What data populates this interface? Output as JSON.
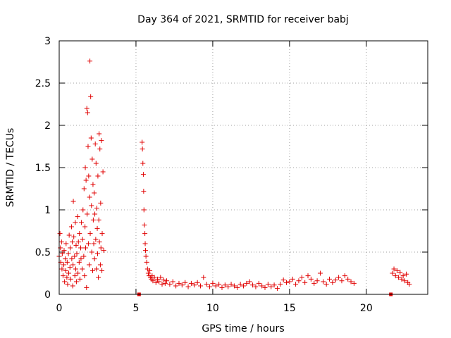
{
  "chart_data": {
    "type": "scatter",
    "title": "Day 364 of 2021, SRMTID for receiver babj",
    "xlabel": "GPS time / hours",
    "ylabel": "SRMTID / TECUs",
    "xlim": [
      0,
      24
    ],
    "ylim": [
      0,
      3
    ],
    "xticks": [
      0,
      5,
      10,
      15,
      20
    ],
    "yticks": [
      0,
      0.5,
      1,
      1.5,
      2,
      2.5,
      3
    ],
    "xtick_labels": [
      "0",
      "5",
      "10",
      "15",
      "20"
    ],
    "ytick_labels": [
      "0",
      "0.5",
      "1",
      "1.5",
      "2",
      "2.5",
      "3"
    ],
    "grid": true,
    "series": [
      {
        "name": "SRMTID",
        "color": "#e00000",
        "marker": "plus",
        "points": [
          [
            0.0,
            0.45
          ],
          [
            0.05,
            0.72
          ],
          [
            0.08,
            0.55
          ],
          [
            0.1,
            0.38
          ],
          [
            0.15,
            0.62
          ],
          [
            0.18,
            0.3
          ],
          [
            0.2,
            0.48
          ],
          [
            0.25,
            0.22
          ],
          [
            0.3,
            0.35
          ],
          [
            0.32,
            0.52
          ],
          [
            0.35,
            0.15
          ],
          [
            0.4,
            0.42
          ],
          [
            0.42,
            0.28
          ],
          [
            0.45,
            0.6
          ],
          [
            0.5,
            0.2
          ],
          [
            0.52,
            0.38
          ],
          [
            0.55,
            0.12
          ],
          [
            0.6,
            0.48
          ],
          [
            0.62,
            0.25
          ],
          [
            0.65,
            0.7
          ],
          [
            0.7,
            0.32
          ],
          [
            0.72,
            0.55
          ],
          [
            0.75,
            0.18
          ],
          [
            0.8,
            0.8
          ],
          [
            0.82,
            0.42
          ],
          [
            0.85,
            0.62
          ],
          [
            0.88,
            0.1
          ],
          [
            0.9,
            0.35
          ],
          [
            0.92,
            1.1
          ],
          [
            0.95,
            0.68
          ],
          [
            1.0,
            0.45
          ],
          [
            1.02,
            0.22
          ],
          [
            1.05,
            0.85
          ],
          [
            1.08,
            0.3
          ],
          [
            1.1,
            0.58
          ],
          [
            1.12,
            0.15
          ],
          [
            1.15,
            0.48
          ],
          [
            1.2,
            0.92
          ],
          [
            1.22,
            0.25
          ],
          [
            1.25,
            0.62
          ],
          [
            1.3,
            0.38
          ],
          [
            1.32,
            0.72
          ],
          [
            1.35,
            0.18
          ],
          [
            1.4,
            0.55
          ],
          [
            1.42,
            0.42
          ],
          [
            1.45,
            0.85
          ],
          [
            1.5,
            0.3
          ],
          [
            1.52,
            0.65
          ],
          [
            1.55,
            1.0
          ],
          [
            1.6,
            0.45
          ],
          [
            1.62,
            1.25
          ],
          [
            1.65,
            0.22
          ],
          [
            1.68,
            0.8
          ],
          [
            1.7,
            1.5
          ],
          [
            1.72,
            0.55
          ],
          [
            1.75,
            1.35
          ],
          [
            1.78,
            0.08
          ],
          [
            1.8,
            2.2
          ],
          [
            1.82,
            0.95
          ],
          [
            1.85,
            2.15
          ],
          [
            1.88,
            1.75
          ],
          [
            1.9,
            0.6
          ],
          [
            1.92,
            1.4
          ],
          [
            1.95,
            0.35
          ],
          [
            1.98,
            1.15
          ],
          [
            2.0,
            2.76
          ],
          [
            2.02,
            0.72
          ],
          [
            2.05,
            2.34
          ],
          [
            2.08,
            1.85
          ],
          [
            2.1,
            1.05
          ],
          [
            2.12,
            0.5
          ],
          [
            2.15,
            1.6
          ],
          [
            2.18,
            0.28
          ],
          [
            2.2,
            1.3
          ],
          [
            2.22,
            0.88
          ],
          [
            2.25,
            0.6
          ],
          [
            2.28,
            1.2
          ],
          [
            2.3,
            0.42
          ],
          [
            2.32,
            0.95
          ],
          [
            2.35,
            1.78
          ],
          [
            2.38,
            0.65
          ],
          [
            2.4,
            1.55
          ],
          [
            2.42,
            0.3
          ],
          [
            2.45,
            1.02
          ],
          [
            2.48,
            0.78
          ],
          [
            2.5,
            0.48
          ],
          [
            2.52,
            1.4
          ],
          [
            2.55,
            0.2
          ],
          [
            2.58,
            0.88
          ],
          [
            2.6,
            1.9
          ],
          [
            2.62,
            0.62
          ],
          [
            2.65,
            1.72
          ],
          [
            2.68,
            0.35
          ],
          [
            2.7,
            1.08
          ],
          [
            2.72,
            0.55
          ],
          [
            2.75,
            1.82
          ],
          [
            2.78,
            0.28
          ],
          [
            2.8,
            0.72
          ],
          [
            2.85,
            1.45
          ],
          [
            2.9,
            0.52
          ],
          [
            5.2,
            0.0
          ],
          [
            5.4,
            1.8
          ],
          [
            5.42,
            1.72
          ],
          [
            5.45,
            1.55
          ],
          [
            5.48,
            1.42
          ],
          [
            5.5,
            1.22
          ],
          [
            5.52,
            1.0
          ],
          [
            5.55,
            0.82
          ],
          [
            5.58,
            0.72
          ],
          [
            5.6,
            0.6
          ],
          [
            5.62,
            0.52
          ],
          [
            5.65,
            0.45
          ],
          [
            5.7,
            0.38
          ],
          [
            5.75,
            0.3
          ],
          [
            5.8,
            0.25
          ],
          [
            5.85,
            0.22
          ],
          [
            5.9,
            0.28
          ],
          [
            5.95,
            0.2
          ],
          [
            6.0,
            0.18
          ],
          [
            6.05,
            0.22
          ],
          [
            6.1,
            0.16
          ],
          [
            6.2,
            0.2
          ],
          [
            6.3,
            0.14
          ],
          [
            6.4,
            0.18
          ],
          [
            6.5,
            0.15
          ],
          [
            6.6,
            0.2
          ],
          [
            6.7,
            0.12
          ],
          [
            6.8,
            0.17
          ],
          [
            6.9,
            0.13
          ],
          [
            7.0,
            0.16
          ],
          [
            7.2,
            0.12
          ],
          [
            7.4,
            0.15
          ],
          [
            7.6,
            0.1
          ],
          [
            7.8,
            0.13
          ],
          [
            8.0,
            0.11
          ],
          [
            8.2,
            0.14
          ],
          [
            8.4,
            0.09
          ],
          [
            8.6,
            0.13
          ],
          [
            8.8,
            0.11
          ],
          [
            9.0,
            0.14
          ],
          [
            9.2,
            0.1
          ],
          [
            9.4,
            0.2
          ],
          [
            9.6,
            0.12
          ],
          [
            9.8,
            0.09
          ],
          [
            10.0,
            0.13
          ],
          [
            10.2,
            0.1
          ],
          [
            10.4,
            0.12
          ],
          [
            10.6,
            0.08
          ],
          [
            10.8,
            0.11
          ],
          [
            11.0,
            0.09
          ],
          [
            11.2,
            0.12
          ],
          [
            11.4,
            0.1
          ],
          [
            11.6,
            0.08
          ],
          [
            11.8,
            0.12
          ],
          [
            12.0,
            0.1
          ],
          [
            12.2,
            0.13
          ],
          [
            12.4,
            0.15
          ],
          [
            12.6,
            0.11
          ],
          [
            12.8,
            0.09
          ],
          [
            13.0,
            0.13
          ],
          [
            13.2,
            0.1
          ],
          [
            13.4,
            0.08
          ],
          [
            13.6,
            0.12
          ],
          [
            13.8,
            0.09
          ],
          [
            14.0,
            0.11
          ],
          [
            14.2,
            0.07
          ],
          [
            14.4,
            0.12
          ],
          [
            14.6,
            0.17
          ],
          [
            14.8,
            0.14
          ],
          [
            15.0,
            0.15
          ],
          [
            15.2,
            0.18
          ],
          [
            15.4,
            0.12
          ],
          [
            15.6,
            0.16
          ],
          [
            15.8,
            0.2
          ],
          [
            16.0,
            0.14
          ],
          [
            16.2,
            0.22
          ],
          [
            16.4,
            0.18
          ],
          [
            16.6,
            0.13
          ],
          [
            16.8,
            0.16
          ],
          [
            17.0,
            0.25
          ],
          [
            17.2,
            0.15
          ],
          [
            17.4,
            0.12
          ],
          [
            17.6,
            0.18
          ],
          [
            17.8,
            0.14
          ],
          [
            18.0,
            0.17
          ],
          [
            18.2,
            0.2
          ],
          [
            18.4,
            0.16
          ],
          [
            18.6,
            0.22
          ],
          [
            18.8,
            0.18
          ],
          [
            19.0,
            0.15
          ],
          [
            19.2,
            0.13
          ],
          [
            21.6,
            0.0
          ],
          [
            21.7,
            0.25
          ],
          [
            21.8,
            0.3
          ],
          [
            21.9,
            0.22
          ],
          [
            22.0,
            0.28
          ],
          [
            22.1,
            0.2
          ],
          [
            22.2,
            0.26
          ],
          [
            22.3,
            0.18
          ],
          [
            22.4,
            0.22
          ],
          [
            22.5,
            0.16
          ],
          [
            22.6,
            0.24
          ],
          [
            22.7,
            0.14
          ],
          [
            22.8,
            0.12
          ]
        ]
      }
    ]
  }
}
